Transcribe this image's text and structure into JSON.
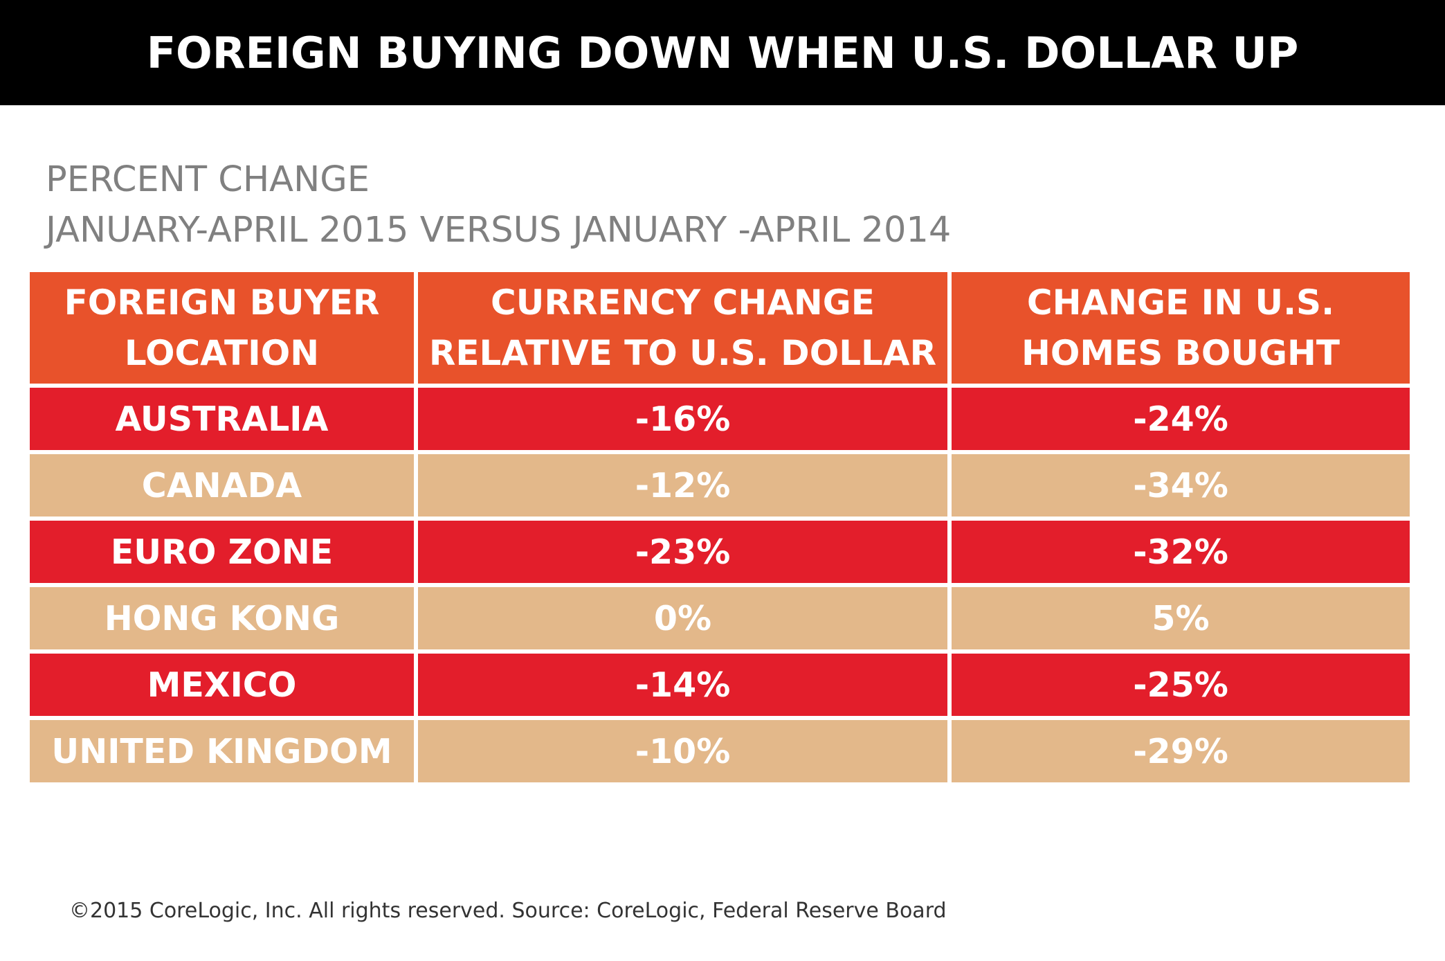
{
  "title": "FOREIGN BUYING DOWN WHEN U.S. DOLLAR UP",
  "subtitle": {
    "line1": "PERCENT CHANGE",
    "line2": "JANUARY-APRIL 2015 VERSUS JANUARY -APRIL 2014"
  },
  "colors": {
    "header": "#E8522B",
    "odd_row": "#E31E2B",
    "even_row": "#E3B88A",
    "banner": "#000000"
  },
  "chart_data": {
    "type": "table",
    "title": "FOREIGN BUYING DOWN WHEN U.S. DOLLAR UP",
    "subtitle": "PERCENT CHANGE JANUARY-APRIL 2015 VERSUS JANUARY -APRIL 2014",
    "columns": [
      [
        "FOREIGN BUYER",
        "LOCATION"
      ],
      [
        "CURRENCY CHANGE",
        "RELATIVE TO U.S. DOLLAR"
      ],
      [
        "CHANGE IN U.S.",
        "HOMES BOUGHT"
      ]
    ],
    "rows": [
      [
        "AUSTRALIA",
        "-16%",
        "-24%"
      ],
      [
        "CANADA",
        "-12%",
        "-34%"
      ],
      [
        "EURO ZONE",
        "-23%",
        "-32%"
      ],
      [
        "HONG KONG",
        "0%",
        "5%"
      ],
      [
        "MEXICO",
        "-14%",
        "-25%"
      ],
      [
        "UNITED KINGDOM",
        "-10%",
        "-29%"
      ]
    ],
    "series": [
      {
        "name": "CURRENCY CHANGE RELATIVE TO U.S. DOLLAR",
        "values": [
          -16,
          -12,
          -23,
          0,
          -14,
          -10
        ]
      },
      {
        "name": "CHANGE IN U.S. HOMES BOUGHT",
        "values": [
          -24,
          -34,
          -32,
          5,
          -25,
          -29
        ]
      }
    ]
  },
  "footer": "©2015 CoreLogic, Inc. All rights reserved. Source: CoreLogic, Federal Reserve Board"
}
